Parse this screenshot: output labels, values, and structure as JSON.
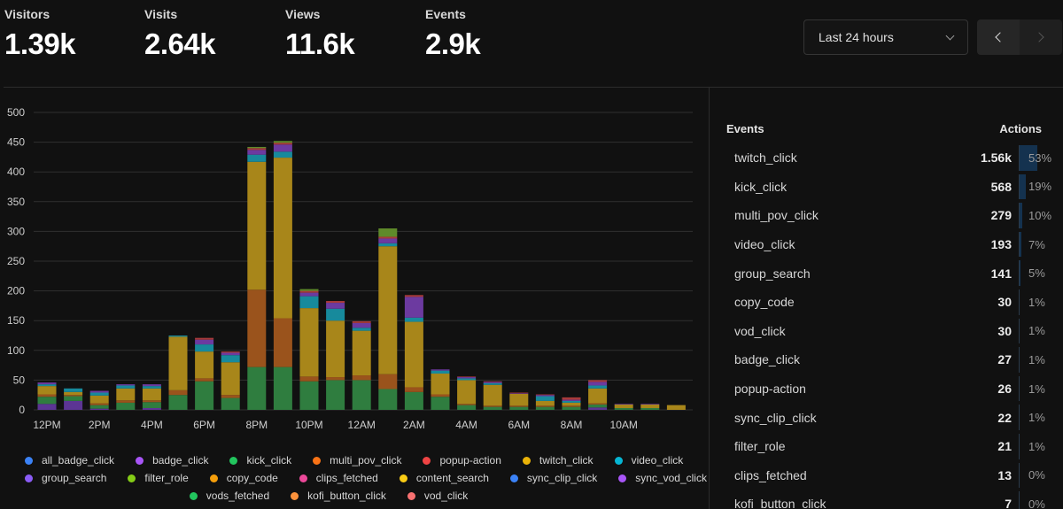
{
  "metrics": [
    {
      "label": "Visitors",
      "value": "1.39k"
    },
    {
      "label": "Visits",
      "value": "2.64k"
    },
    {
      "label": "Views",
      "value": "11.6k"
    },
    {
      "label": "Events",
      "value": "2.9k"
    }
  ],
  "date_range": {
    "selected": "Last 24 hours"
  },
  "events_panel": {
    "header_events": "Events",
    "header_actions": "Actions",
    "rows": [
      {
        "name": "twitch_click",
        "count": "1.56k",
        "pct": "53%",
        "fraction": 0.53
      },
      {
        "name": "kick_click",
        "count": "568",
        "pct": "19%",
        "fraction": 0.19
      },
      {
        "name": "multi_pov_click",
        "count": "279",
        "pct": "10%",
        "fraction": 0.1
      },
      {
        "name": "video_click",
        "count": "193",
        "pct": "7%",
        "fraction": 0.07
      },
      {
        "name": "group_search",
        "count": "141",
        "pct": "5%",
        "fraction": 0.05
      },
      {
        "name": "copy_code",
        "count": "30",
        "pct": "1%",
        "fraction": 0.01
      },
      {
        "name": "vod_click",
        "count": "30",
        "pct": "1%",
        "fraction": 0.01
      },
      {
        "name": "badge_click",
        "count": "27",
        "pct": "1%",
        "fraction": 0.01
      },
      {
        "name": "popup-action",
        "count": "26",
        "pct": "1%",
        "fraction": 0.01
      },
      {
        "name": "sync_clip_click",
        "count": "22",
        "pct": "1%",
        "fraction": 0.01
      },
      {
        "name": "filter_role",
        "count": "21",
        "pct": "1%",
        "fraction": 0.01
      },
      {
        "name": "clips_fetched",
        "count": "13",
        "pct": "0%",
        "fraction": 0.0
      },
      {
        "name": "kofi_button_click",
        "count": "7",
        "pct": "0%",
        "fraction": 0.0
      }
    ]
  },
  "legend": [
    {
      "name": "all_badge_click",
      "color": "#3b82f6"
    },
    {
      "name": "badge_click",
      "color": "#a855f7"
    },
    {
      "name": "kick_click",
      "color": "#22c55e"
    },
    {
      "name": "multi_pov_click",
      "color": "#f97316"
    },
    {
      "name": "popup-action",
      "color": "#ef4444"
    },
    {
      "name": "twitch_click",
      "color": "#eab308"
    },
    {
      "name": "video_click",
      "color": "#06b6d4"
    },
    {
      "name": "group_search",
      "color": "#8b5cf6"
    },
    {
      "name": "filter_role",
      "color": "#84cc16"
    },
    {
      "name": "copy_code",
      "color": "#f59e0b"
    },
    {
      "name": "clips_fetched",
      "color": "#ec4899"
    },
    {
      "name": "content_search",
      "color": "#facc15"
    },
    {
      "name": "sync_clip_click",
      "color": "#3b82f6"
    },
    {
      "name": "sync_vod_click",
      "color": "#a855f7"
    },
    {
      "name": "vods_fetched",
      "color": "#22c55e"
    },
    {
      "name": "kofi_button_click",
      "color": "#fb923c"
    },
    {
      "name": "vod_click",
      "color": "#f87171"
    }
  ],
  "chart_data": {
    "type": "bar",
    "stacked": true,
    "ylim": [
      0,
      500
    ],
    "yticks": [
      0,
      50,
      100,
      150,
      200,
      250,
      300,
      350,
      400,
      450,
      500
    ],
    "grid": true,
    "x_tick_labels": [
      "12PM",
      "2PM",
      "4PM",
      "6PM",
      "8PM",
      "10PM",
      "12AM",
      "2AM",
      "4AM",
      "6AM",
      "8AM",
      "10AM"
    ],
    "x_tick_every": 2,
    "series_colors": {
      "kick_click": "#2f7d3f",
      "vods_fetched": "#2f7d3f",
      "multi_pov_click": "#9a531c",
      "twitch_click": "#a8861a",
      "video_click": "#178a9c",
      "group_search": "#5c3594",
      "badge_click": "#6c3aa0",
      "popup-action": "#a83a3a",
      "filter_role": "#5f8a2a"
    },
    "series": [
      {
        "name": "group_search",
        "values": [
          10,
          15,
          2,
          0,
          3,
          0,
          0,
          0,
          0,
          0,
          0,
          0,
          0,
          0,
          0,
          0,
          0,
          0,
          0,
          0,
          0,
          4,
          0,
          0,
          0
        ]
      },
      {
        "name": "kick_click",
        "values": [
          12,
          8,
          6,
          12,
          10,
          25,
          48,
          20,
          72,
          72,
          48,
          50,
          50,
          35,
          30,
          22,
          8,
          5,
          5,
          5,
          5,
          5,
          3,
          3,
          0
        ]
      },
      {
        "name": "multi_pov_click",
        "values": [
          4,
          2,
          3,
          4,
          3,
          8,
          5,
          5,
          130,
          82,
          8,
          5,
          8,
          25,
          8,
          4,
          2,
          2,
          2,
          2,
          2,
          2,
          0,
          0,
          0
        ]
      },
      {
        "name": "twitch_click",
        "values": [
          14,
          5,
          13,
          20,
          20,
          90,
          45,
          55,
          215,
          270,
          115,
          95,
          75,
          215,
          110,
          35,
          40,
          35,
          20,
          8,
          5,
          25,
          6,
          6,
          8
        ]
      },
      {
        "name": "video_click",
        "values": [
          3,
          6,
          5,
          5,
          4,
          2,
          12,
          12,
          12,
          10,
          20,
          20,
          5,
          5,
          7,
          5,
          3,
          3,
          0,
          8,
          3,
          5,
          0,
          0,
          0
        ]
      },
      {
        "name": "badge_click",
        "values": [
          3,
          0,
          3,
          2,
          3,
          0,
          8,
          4,
          8,
          12,
          6,
          10,
          8,
          8,
          35,
          2,
          2,
          2,
          1,
          2,
          2,
          6,
          1,
          1,
          0
        ]
      },
      {
        "name": "popup-action",
        "values": [
          0,
          0,
          0,
          0,
          0,
          0,
          3,
          2,
          3,
          3,
          3,
          3,
          3,
          3,
          3,
          0,
          1,
          1,
          1,
          1,
          4,
          3,
          0,
          0,
          0
        ]
      },
      {
        "name": "filter_role",
        "values": [
          0,
          0,
          0,
          0,
          0,
          0,
          0,
          0,
          2,
          3,
          3,
          0,
          0,
          14,
          0,
          0,
          0,
          0,
          0,
          0,
          0,
          0,
          0,
          0,
          0
        ]
      }
    ]
  }
}
